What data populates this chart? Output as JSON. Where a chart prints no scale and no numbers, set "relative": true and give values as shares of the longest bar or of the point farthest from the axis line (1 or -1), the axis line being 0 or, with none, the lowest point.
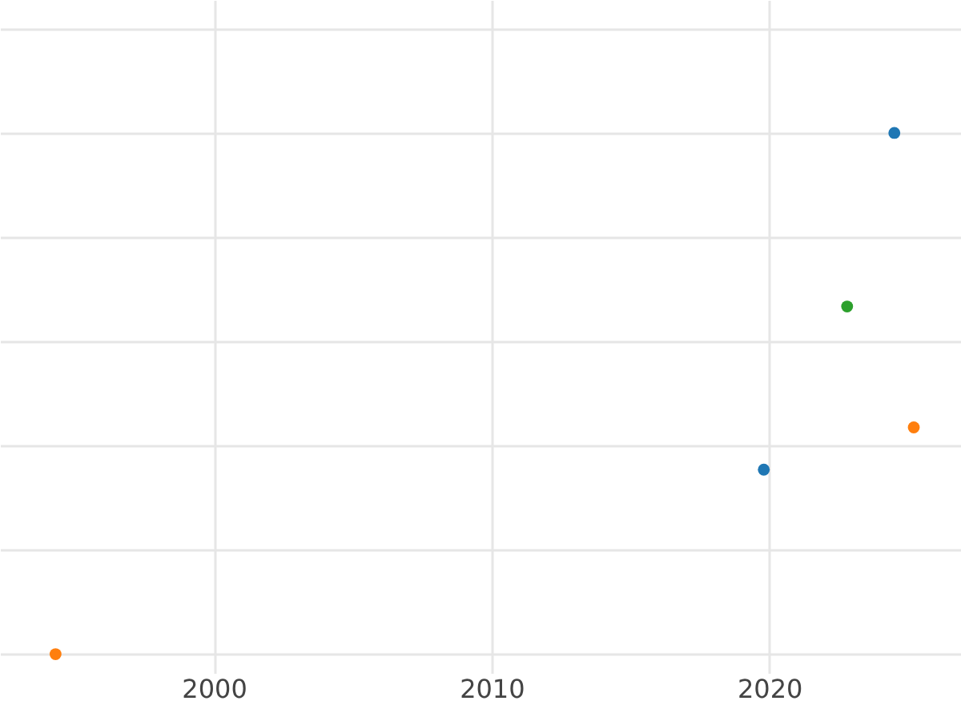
{
  "chart_data": {
    "type": "scatter",
    "relative": true,
    "xlim": [
      1992.3,
      2026.9
    ],
    "xticks": [
      2000,
      2010,
      2020
    ],
    "grid": true,
    "marker": "circle",
    "legend": false,
    "series": [
      {
        "color": "#1f77b4",
        "x": [
          2019.8,
          2024.5
        ],
        "values": [
          0.354,
          1
        ]
      },
      {
        "color": "#ff7f0e",
        "x": [
          1994.3,
          2025.2
        ],
        "values": [
          0,
          0.435
        ]
      },
      {
        "color": "#2ca02c",
        "x": [
          2022.8
        ],
        "values": [
          0.667
        ]
      }
    ]
  }
}
